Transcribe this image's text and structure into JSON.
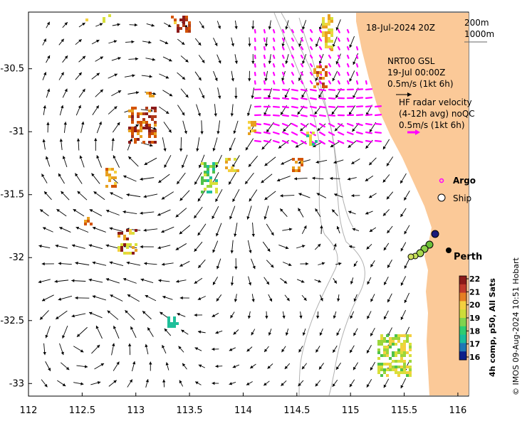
{
  "map": {
    "date_label": "18-Jul-2024 20Z",
    "depth_contours": [
      "200m",
      "1000m"
    ],
    "model_legend": {
      "lines": [
        "NRT00 GSL",
        "19-Jul 00:00Z",
        "0.5m/s (1kt 6h)"
      ]
    },
    "radar_legend": {
      "lines": [
        "HF radar velocity",
        "(4-12h avg) noQC",
        "0.5m/s (1kt 6h)"
      ],
      "color": "#ff00ff"
    },
    "argo_label": "Argo",
    "ship_label": "Ship",
    "city": "Perth",
    "credit": "© IMOS 09-Aug-2024 10:51 Hobart",
    "colorbar": {
      "title": "4h comp, p50, All Sats",
      "ticks": [
        "22",
        "21",
        "20",
        "19",
        "18",
        "17",
        "16"
      ],
      "min": 16,
      "max": 22,
      "colors": [
        "#8b1a1a",
        "#c0392b",
        "#e67e22",
        "#f4d03f",
        "#cddc39",
        "#7fd34e",
        "#2ecc71",
        "#1abc9c",
        "#1f77b4",
        "#0b1f8a"
      ]
    },
    "axes": {
      "x_ticks": [
        "112",
        "112.5",
        "113",
        "113.5",
        "114",
        "114.5",
        "115",
        "115.5",
        "116"
      ],
      "y_ticks": [
        "-30.5",
        "-31",
        "-31.5",
        "-32",
        "-32.5",
        "-33"
      ],
      "xlim": [
        112,
        116.1
      ],
      "ylim": [
        -33.1,
        -30.05
      ]
    },
    "colors": {
      "land": "#fbc998",
      "contour": "#b0b0b0",
      "arrow": "#000000"
    }
  }
}
